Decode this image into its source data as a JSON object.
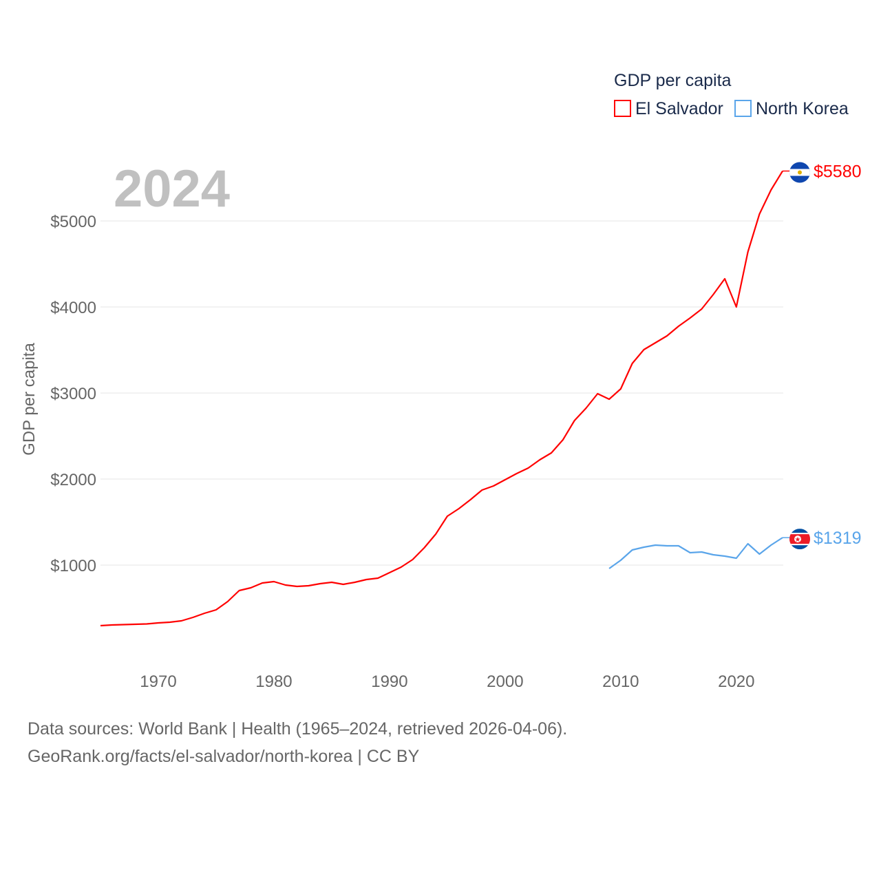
{
  "chart_data": {
    "type": "line",
    "title": "2024",
    "ylabel": "GDP per capita",
    "xlabel": "",
    "xlim": [
      1965,
      2024
    ],
    "ylim": [
      0,
      5800
    ],
    "grid": true,
    "legend": {
      "title": "GDP per capita",
      "placement": "top-right"
    },
    "x_ticks": [
      1970,
      1980,
      1990,
      2000,
      2010,
      2020
    ],
    "x_tick_labels": [
      "1970",
      "1980",
      "1990",
      "2000",
      "2010",
      "2020"
    ],
    "y_ticks": [
      1000,
      2000,
      3000,
      4000,
      5000
    ],
    "y_tick_labels": [
      "$1000",
      "$2000",
      "$3000",
      "$4000",
      "$5000"
    ],
    "series": [
      {
        "name": "El Salvador",
        "color": "#ff0000",
        "end_label": "$5580",
        "flag": "el-salvador-flag",
        "x": [
          1965,
          1966,
          1967,
          1968,
          1969,
          1970,
          1971,
          1972,
          1973,
          1974,
          1975,
          1976,
          1977,
          1978,
          1979,
          1980,
          1981,
          1982,
          1983,
          1984,
          1985,
          1986,
          1987,
          1988,
          1989,
          1990,
          1991,
          1992,
          1993,
          1994,
          1995,
          1996,
          1997,
          1998,
          1999,
          2000,
          2001,
          2002,
          2003,
          2004,
          2005,
          2006,
          2007,
          2008,
          2009,
          2010,
          2011,
          2012,
          2013,
          2014,
          2015,
          2016,
          2017,
          2018,
          2019,
          2020,
          2021,
          2022,
          2023,
          2024
        ],
        "values": [
          296,
          304,
          308,
          312,
          316,
          328,
          336,
          352,
          392,
          440,
          480,
          576,
          704,
          736,
          792,
          808,
          768,
          752,
          760,
          784,
          800,
          776,
          800,
          832,
          848,
          912,
          976,
          1064,
          1200,
          1360,
          1568,
          1656,
          1760,
          1872,
          1920,
          1992,
          2064,
          2128,
          2224,
          2304,
          2456,
          2680,
          2824,
          2992,
          2928,
          3048,
          3344,
          3504,
          3584,
          3664,
          3776,
          3872,
          3976,
          4144,
          4328,
          4000,
          4640,
          5080,
          5360,
          5580
        ]
      },
      {
        "name": "North Korea",
        "color": "#5aa5ea",
        "end_label": "$1319",
        "flag": "north-korea-flag",
        "x": [
          2009,
          2010,
          2011,
          2012,
          2013,
          2014,
          2015,
          2016,
          2017,
          2018,
          2019,
          2020,
          2021,
          2022,
          2023,
          2024
        ],
        "values": [
          960,
          1056,
          1176,
          1208,
          1232,
          1224,
          1224,
          1144,
          1152,
          1120,
          1104,
          1080,
          1248,
          1128,
          1232,
          1319
        ]
      }
    ]
  },
  "footer": {
    "line1": "Data sources: World Bank | Health (1965–2024, retrieved 2026-04-06).",
    "line2": "GeoRank.org/facts/el-salvador/north-korea | CC BY"
  }
}
